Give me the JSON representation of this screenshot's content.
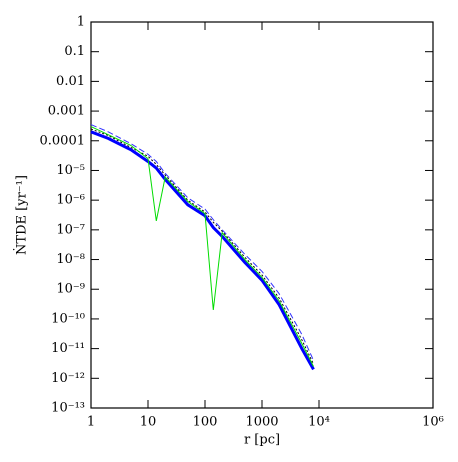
{
  "chart_data": {
    "type": "line",
    "x_label": "r [pc]",
    "y_label": "ṄTDE [yr⁻¹]",
    "xlog": true,
    "ylog": true,
    "xlim": [
      1,
      1000000
    ],
    "ylim": [
      1e-13,
      1
    ],
    "xticks": [
      1,
      10,
      100,
      1000,
      {
        "value": 10000,
        "label": "10⁴"
      },
      {
        "value": 1000000,
        "label": "10⁶"
      }
    ],
    "yticks": [
      1,
      0.1,
      0.01,
      0.001,
      0.0001,
      {
        "value": 1e-05,
        "label": "10⁻⁵"
      },
      {
        "value": 1e-06,
        "label": "10⁻⁶"
      },
      {
        "value": 1e-07,
        "label": "10⁻⁷"
      },
      {
        "value": 1e-08,
        "label": "10⁻⁸"
      },
      {
        "value": 1e-09,
        "label": "10⁻⁹"
      },
      {
        "value": 1e-10,
        "label": "10⁻¹⁰"
      },
      {
        "value": 1e-11,
        "label": "10⁻¹¹"
      },
      {
        "value": 1e-12,
        "label": "10⁻¹²"
      },
      {
        "value": 1e-13,
        "label": "10⁻¹³"
      }
    ],
    "x": [
      1,
      2,
      5,
      10,
      14,
      20,
      50,
      100,
      140,
      200,
      500,
      1000,
      2000,
      5000,
      8000
    ],
    "series": [
      {
        "color": "#0000ff",
        "dash": "none",
        "width": 3,
        "values": [
          0.0002,
          0.00012,
          5e-05,
          2e-05,
          1.2e-05,
          5e-06,
          7e-07,
          3e-07,
          1.2e-07,
          6e-08,
          8e-09,
          2e-09,
          3e-10,
          1e-11,
          2e-12
        ]
      },
      {
        "color": "#000000",
        "dash": "2,2",
        "width": 1,
        "values": [
          0.00025,
          0.00015,
          6e-05,
          3e-05,
          1.6e-05,
          7e-06,
          1e-06,
          4e-07,
          1.8e-07,
          9e-08,
          1.2e-08,
          3e-09,
          5e-10,
          2e-11,
          3e-12
        ]
      },
      {
        "color": "#00dd00",
        "dash": "none",
        "width": 1,
        "values": [
          0.0003,
          0.00016,
          7e-05,
          2.5e-05,
          2e-07,
          6e-06,
          9e-07,
          3.5e-07,
          2e-10,
          8e-08,
          1e-08,
          2.5e-09,
          4e-10,
          1.5e-11,
          2.5e-12
        ]
      },
      {
        "color": "#3333ff",
        "dash": "6,3",
        "width": 1,
        "values": [
          0.00035,
          0.0002,
          8e-05,
          3.5e-05,
          2e-05,
          8e-06,
          1.2e-06,
          5e-07,
          2.2e-07,
          1e-07,
          1.5e-08,
          4e-09,
          7e-10,
          3e-11,
          4e-12
        ]
      }
    ]
  }
}
